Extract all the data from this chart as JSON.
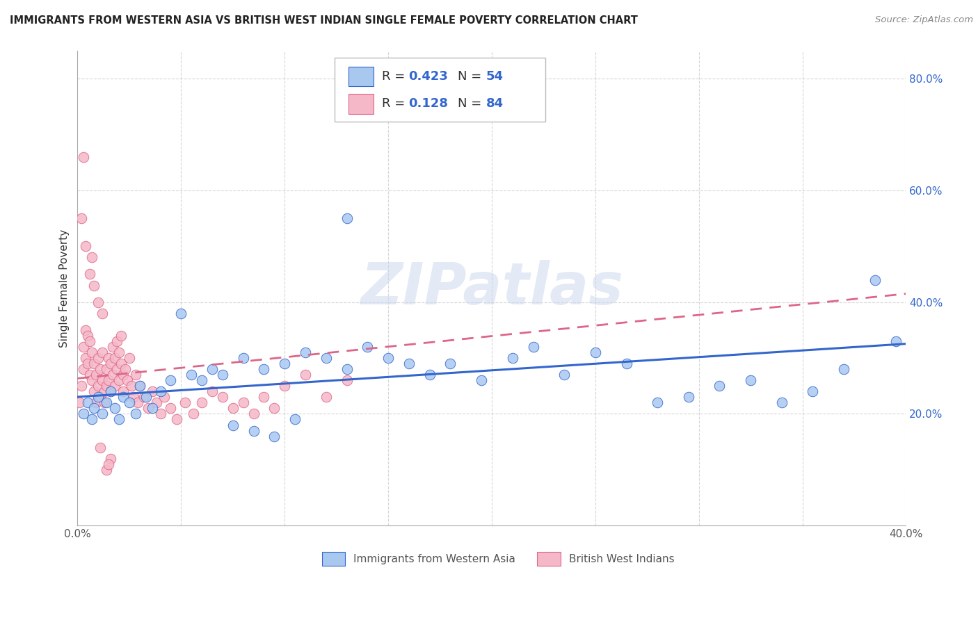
{
  "title": "IMMIGRANTS FROM WESTERN ASIA VS BRITISH WEST INDIAN SINGLE FEMALE POVERTY CORRELATION CHART",
  "source": "Source: ZipAtlas.com",
  "ylabel": "Single Female Poverty",
  "legend_label1": "Immigrants from Western Asia",
  "legend_label2": "British West Indians",
  "R1": 0.423,
  "N1": 54,
  "R2": 0.128,
  "N2": 84,
  "color1": "#a8c8f0",
  "color2": "#f5b8c8",
  "trendline1_color": "#3366cc",
  "trendline2_color": "#dd6688",
  "xlim": [
    0.0,
    0.4
  ],
  "ylim": [
    0.0,
    0.85
  ],
  "xticks": [
    0.0,
    0.05,
    0.1,
    0.15,
    0.2,
    0.25,
    0.3,
    0.35,
    0.4
  ],
  "yticks": [
    0.0,
    0.2,
    0.4,
    0.6,
    0.8
  ],
  "background_color": "#ffffff",
  "grid_color": "#cccccc",
  "watermark": "ZIPatlas",
  "scatter1_x": [
    0.003,
    0.005,
    0.007,
    0.008,
    0.01,
    0.012,
    0.014,
    0.016,
    0.018,
    0.02,
    0.022,
    0.025,
    0.028,
    0.03,
    0.033,
    0.036,
    0.04,
    0.045,
    0.05,
    0.055,
    0.06,
    0.065,
    0.07,
    0.08,
    0.09,
    0.1,
    0.11,
    0.12,
    0.13,
    0.14,
    0.15,
    0.16,
    0.17,
    0.18,
    0.195,
    0.21,
    0.22,
    0.235,
    0.25,
    0.265,
    0.28,
    0.295,
    0.31,
    0.325,
    0.34,
    0.355,
    0.37,
    0.385,
    0.395,
    0.13,
    0.075,
    0.085,
    0.095,
    0.105
  ],
  "scatter1_y": [
    0.2,
    0.22,
    0.19,
    0.21,
    0.23,
    0.2,
    0.22,
    0.24,
    0.21,
    0.19,
    0.23,
    0.22,
    0.2,
    0.25,
    0.23,
    0.21,
    0.24,
    0.26,
    0.38,
    0.27,
    0.26,
    0.28,
    0.27,
    0.3,
    0.28,
    0.29,
    0.31,
    0.3,
    0.28,
    0.32,
    0.3,
    0.29,
    0.27,
    0.29,
    0.26,
    0.3,
    0.32,
    0.27,
    0.31,
    0.29,
    0.22,
    0.23,
    0.25,
    0.26,
    0.22,
    0.24,
    0.28,
    0.44,
    0.33,
    0.55,
    0.18,
    0.17,
    0.16,
    0.19
  ],
  "scatter2_x": [
    0.001,
    0.002,
    0.003,
    0.003,
    0.004,
    0.004,
    0.005,
    0.005,
    0.006,
    0.006,
    0.007,
    0.007,
    0.008,
    0.008,
    0.009,
    0.009,
    0.01,
    0.01,
    0.011,
    0.011,
    0.012,
    0.012,
    0.013,
    0.013,
    0.014,
    0.014,
    0.015,
    0.015,
    0.016,
    0.016,
    0.017,
    0.017,
    0.018,
    0.018,
    0.019,
    0.019,
    0.02,
    0.02,
    0.021,
    0.021,
    0.022,
    0.022,
    0.023,
    0.024,
    0.025,
    0.026,
    0.027,
    0.028,
    0.029,
    0.03,
    0.032,
    0.034,
    0.036,
    0.038,
    0.04,
    0.042,
    0.045,
    0.048,
    0.052,
    0.056,
    0.06,
    0.065,
    0.07,
    0.075,
    0.08,
    0.085,
    0.09,
    0.095,
    0.1,
    0.11,
    0.12,
    0.13,
    0.002,
    0.004,
    0.006,
    0.008,
    0.01,
    0.012,
    0.014,
    0.016,
    0.003,
    0.007,
    0.011,
    0.015
  ],
  "scatter2_y": [
    0.22,
    0.25,
    0.28,
    0.32,
    0.3,
    0.35,
    0.29,
    0.34,
    0.27,
    0.33,
    0.31,
    0.26,
    0.24,
    0.29,
    0.22,
    0.27,
    0.25,
    0.3,
    0.23,
    0.28,
    0.26,
    0.31,
    0.24,
    0.22,
    0.28,
    0.25,
    0.3,
    0.26,
    0.24,
    0.29,
    0.27,
    0.32,
    0.25,
    0.3,
    0.28,
    0.33,
    0.26,
    0.31,
    0.29,
    0.34,
    0.27,
    0.24,
    0.28,
    0.26,
    0.3,
    0.25,
    0.23,
    0.27,
    0.22,
    0.25,
    0.23,
    0.21,
    0.24,
    0.22,
    0.2,
    0.23,
    0.21,
    0.19,
    0.22,
    0.2,
    0.22,
    0.24,
    0.23,
    0.21,
    0.22,
    0.2,
    0.23,
    0.21,
    0.25,
    0.27,
    0.23,
    0.26,
    0.55,
    0.5,
    0.45,
    0.43,
    0.4,
    0.38,
    0.1,
    0.12,
    0.66,
    0.48,
    0.14,
    0.11
  ]
}
